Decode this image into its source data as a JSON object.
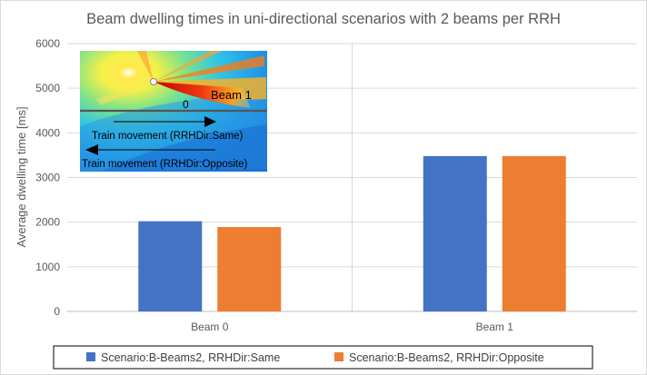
{
  "chart_data": {
    "type": "bar",
    "title": "Beam dwelling times in uni-directional scenarios with 2 beams per RRH",
    "ylabel": "Average dwelling time [ms]",
    "xlabel": "",
    "categories": [
      "Beam 0",
      "Beam 1"
    ],
    "ylim": [
      0,
      6000
    ],
    "yticks": [
      0,
      1000,
      2000,
      3000,
      4000,
      5000,
      6000
    ],
    "grid": true,
    "legend_position": "bottom",
    "series": [
      {
        "name": "Scenario:B-Beams2, RRHDir:Same",
        "values": [
          2020,
          3480
        ],
        "color": "#4472c4"
      },
      {
        "name": "Scenario:B-Beams2, RRHDir:Opposite",
        "values": [
          1890,
          3480
        ],
        "color": "#ed7d31"
      }
    ]
  },
  "inset": {
    "beam0_label": "0",
    "beam1_label": "Beam 1",
    "same_label": "Train movement (RRHDir:Same)",
    "opposite_label": "Train movement (RRHDir:Opposite)"
  }
}
